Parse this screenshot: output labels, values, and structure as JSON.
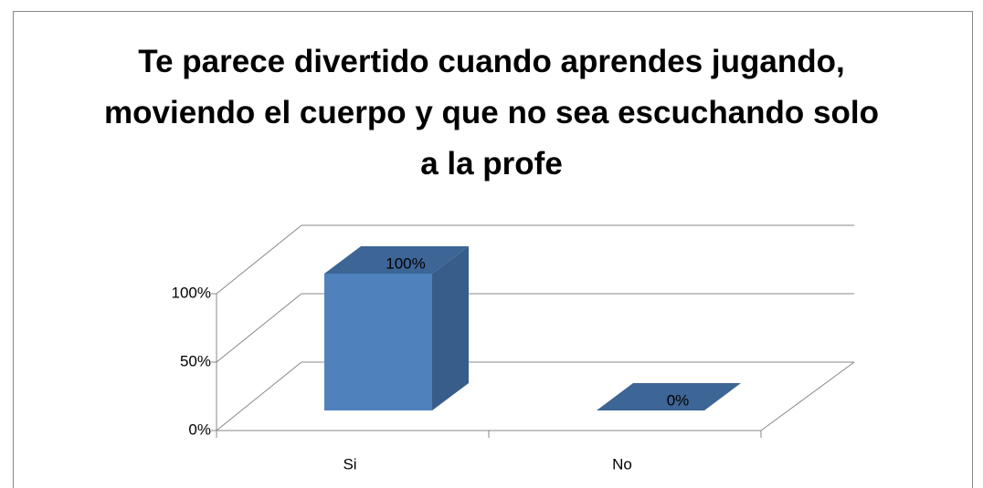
{
  "chart_data": {
    "type": "bar3d",
    "title": "Te parece divertido cuando aprendes jugando, moviendo el cuerpo y que no sea escuchando solo  a la profe",
    "categories": [
      "Si",
      "No"
    ],
    "values": [
      100,
      0
    ],
    "value_labels": [
      "100%",
      "0%"
    ],
    "color": "#4f81bd",
    "ylim": [
      0,
      100
    ],
    "yticks": [
      {
        "value": 0,
        "label": "0%"
      },
      {
        "value": 50,
        "label": "50%"
      },
      {
        "value": 100,
        "label": "100%"
      }
    ],
    "grid": true
  }
}
